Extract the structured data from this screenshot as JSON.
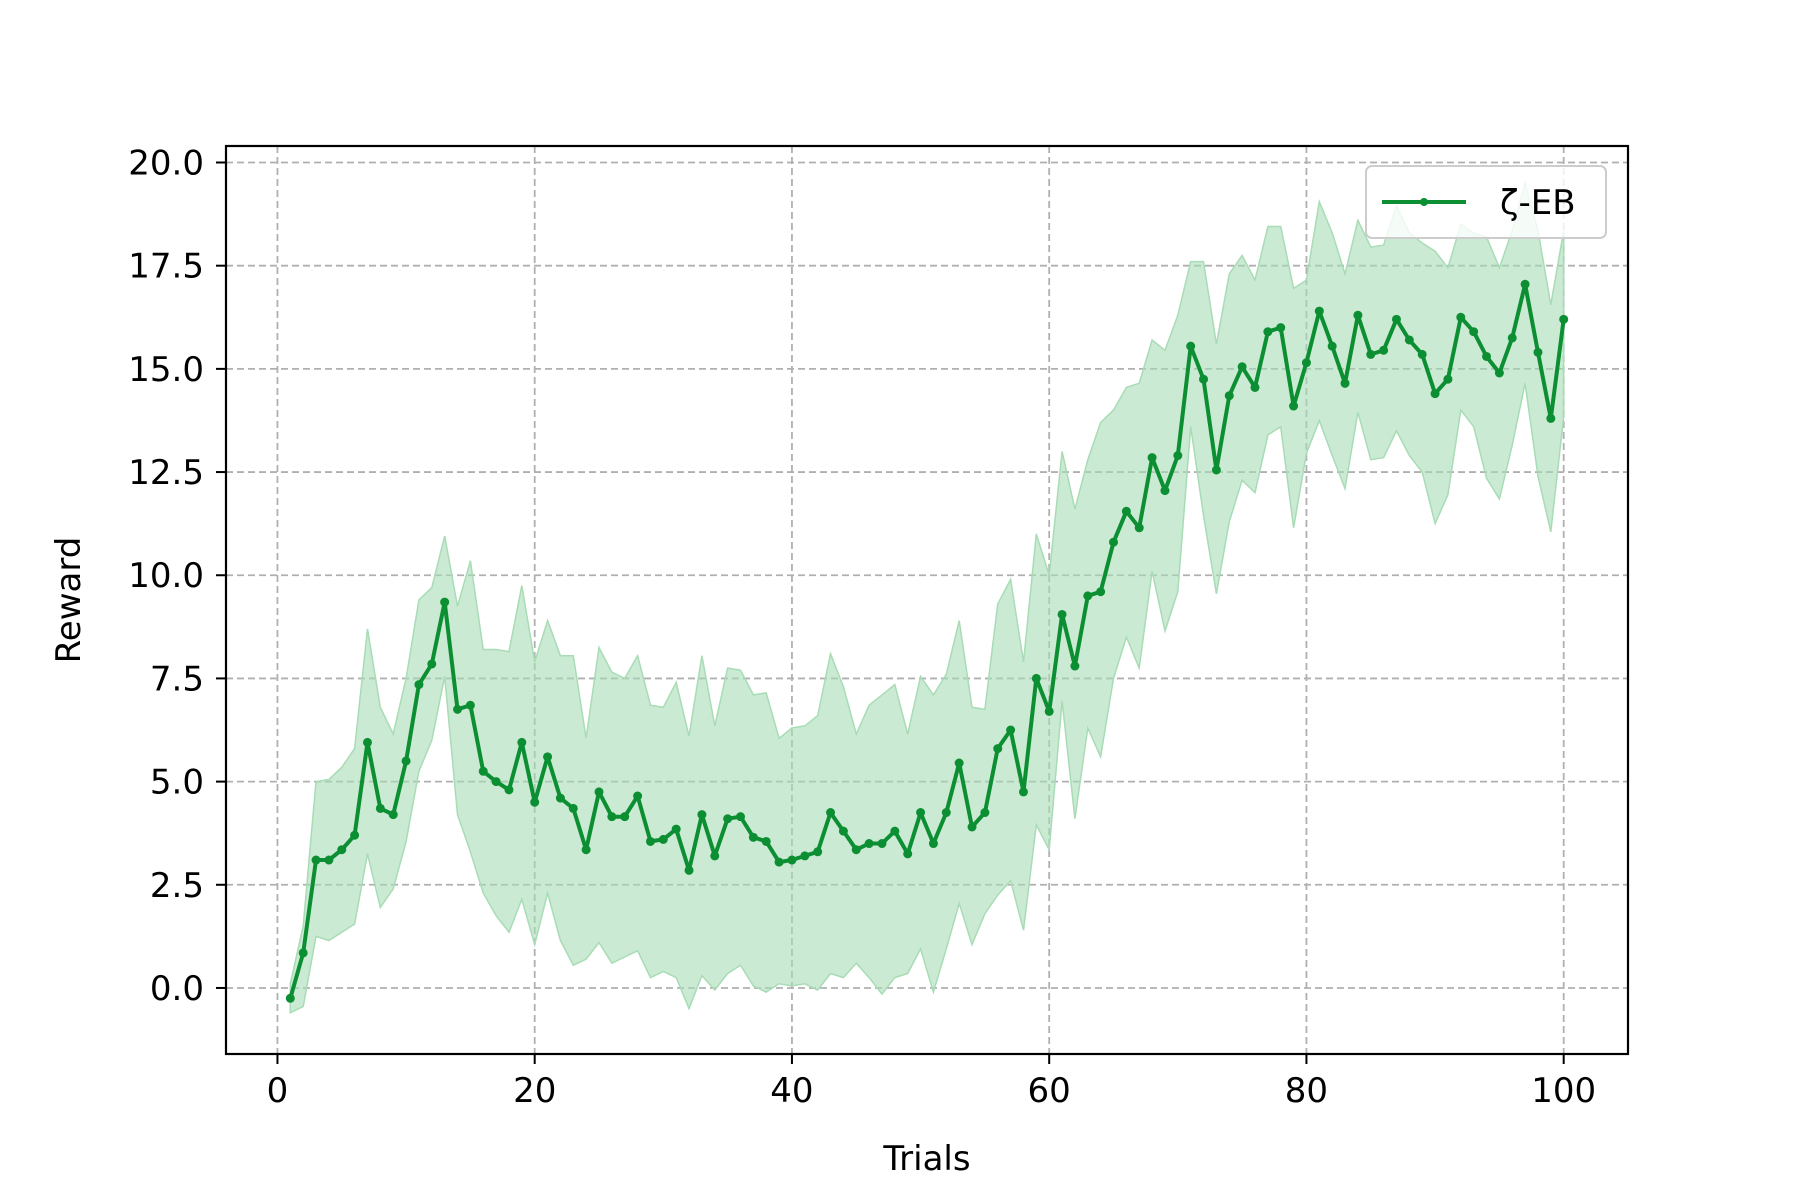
{
  "chart_data": {
    "type": "line",
    "title": "",
    "xlabel": "Trials",
    "ylabel": "Reward",
    "xlim": [
      -4,
      105
    ],
    "ylim": [
      -1.6,
      20.4
    ],
    "x_ticks": [
      0,
      20,
      40,
      60,
      80,
      100
    ],
    "y_ticks": [
      0.0,
      2.5,
      5.0,
      7.5,
      10.0,
      12.5,
      15.0,
      17.5,
      20.0
    ],
    "grid": true,
    "legend_position": "top-right",
    "colors": {
      "line": "#0c8f33",
      "band": "#a8dcb5"
    },
    "series": [
      {
        "name": "ζ-EB",
        "x": [
          1,
          2,
          3,
          4,
          5,
          6,
          7,
          8,
          9,
          10,
          11,
          12,
          13,
          14,
          15,
          16,
          17,
          18,
          19,
          20,
          21,
          22,
          23,
          24,
          25,
          26,
          27,
          28,
          29,
          30,
          31,
          32,
          33,
          34,
          35,
          36,
          37,
          38,
          39,
          40,
          41,
          42,
          43,
          44,
          45,
          46,
          47,
          48,
          49,
          50,
          51,
          52,
          53,
          54,
          55,
          56,
          57,
          58,
          59,
          60,
          61,
          62,
          63,
          64,
          65,
          66,
          67,
          68,
          69,
          70,
          71,
          72,
          73,
          74,
          75,
          76,
          77,
          78,
          79,
          80,
          81,
          82,
          83,
          84,
          85,
          86,
          87,
          88,
          89,
          90,
          91,
          92,
          93,
          94,
          95,
          96,
          97,
          98,
          99,
          100
        ],
        "values": [
          -0.25,
          0.85,
          3.1,
          3.1,
          3.35,
          3.7,
          5.95,
          4.35,
          4.2,
          5.5,
          7.35,
          7.85,
          9.35,
          6.75,
          6.85,
          5.25,
          5.0,
          4.8,
          5.95,
          4.5,
          5.6,
          4.6,
          4.35,
          3.35,
          4.75,
          4.15,
          4.15,
          4.65,
          3.55,
          3.6,
          3.85,
          2.85,
          4.2,
          3.2,
          4.1,
          4.15,
          3.65,
          3.55,
          3.05,
          3.1,
          3.2,
          3.3,
          4.25,
          3.8,
          3.35,
          3.5,
          3.5,
          3.8,
          3.25,
          4.25,
          3.5,
          4.25,
          5.45,
          3.9,
          4.25,
          5.8,
          6.25,
          4.75,
          7.5,
          6.7,
          9.05,
          7.8,
          9.5,
          9.6,
          10.8,
          11.55,
          11.15,
          12.85,
          12.05,
          12.9,
          15.55,
          14.75,
          12.55,
          14.35,
          15.05,
          14.55,
          15.9,
          16.0,
          14.1,
          15.15,
          16.4,
          15.55,
          14.65,
          16.3,
          15.35,
          15.45,
          16.2,
          15.7,
          15.35,
          14.4,
          14.75,
          16.25,
          15.9,
          15.3,
          14.9,
          15.75,
          17.05,
          15.4,
          13.8,
          16.2
        ],
        "upper": [
          0.1,
          1.5,
          5.0,
          5.05,
          5.35,
          5.8,
          8.7,
          6.8,
          6.15,
          7.5,
          9.4,
          9.7,
          10.95,
          9.25,
          10.35,
          8.2,
          8.2,
          8.15,
          9.75,
          7.9,
          8.9,
          8.05,
          8.05,
          6.05,
          8.25,
          7.65,
          7.5,
          8.05,
          6.85,
          6.8,
          7.4,
          6.1,
          8.05,
          6.35,
          7.75,
          7.7,
          7.1,
          7.15,
          6.05,
          6.3,
          6.35,
          6.6,
          8.1,
          7.3,
          6.15,
          6.85,
          7.1,
          7.35,
          6.15,
          7.55,
          7.1,
          7.6,
          8.9,
          6.8,
          6.75,
          9.3,
          9.9,
          7.9,
          11.0,
          10.0,
          13.0,
          11.6,
          12.8,
          13.7,
          14.0,
          14.55,
          14.65,
          15.7,
          15.45,
          16.3,
          17.6,
          17.6,
          15.6,
          17.3,
          17.75,
          17.15,
          18.45,
          18.45,
          16.95,
          17.15,
          19.05,
          18.3,
          17.3,
          18.6,
          17.95,
          18.0,
          18.95,
          18.3,
          18.05,
          17.85,
          17.45,
          18.5,
          18.3,
          18.2,
          17.45,
          18.35,
          19.5,
          18.35,
          16.55,
          18.35
        ],
        "lower": [
          -0.6,
          -0.45,
          1.25,
          1.15,
          1.35,
          1.55,
          3.25,
          1.95,
          2.4,
          3.55,
          5.25,
          6.0,
          7.55,
          4.2,
          3.3,
          2.3,
          1.75,
          1.35,
          2.15,
          1.05,
          2.3,
          1.15,
          0.55,
          0.7,
          1.1,
          0.6,
          0.75,
          0.9,
          0.25,
          0.4,
          0.25,
          -0.5,
          0.3,
          -0.05,
          0.35,
          0.55,
          0.05,
          -0.1,
          0.1,
          0.05,
          0.1,
          -0.05,
          0.35,
          0.25,
          0.6,
          0.25,
          -0.15,
          0.25,
          0.35,
          0.95,
          -0.1,
          0.95,
          2.05,
          1.05,
          1.8,
          2.25,
          2.6,
          1.4,
          3.95,
          3.35,
          6.95,
          4.1,
          6.3,
          5.6,
          7.5,
          8.5,
          7.75,
          10.1,
          8.65,
          9.6,
          13.6,
          11.45,
          9.55,
          11.3,
          12.3,
          12.0,
          13.4,
          13.6,
          11.15,
          12.95,
          13.75,
          12.9,
          12.1,
          13.95,
          12.8,
          12.85,
          13.5,
          12.9,
          12.5,
          11.25,
          11.95,
          14.0,
          13.6,
          12.35,
          11.85,
          13.15,
          14.65,
          12.4,
          11.05,
          13.85
        ]
      }
    ]
  }
}
